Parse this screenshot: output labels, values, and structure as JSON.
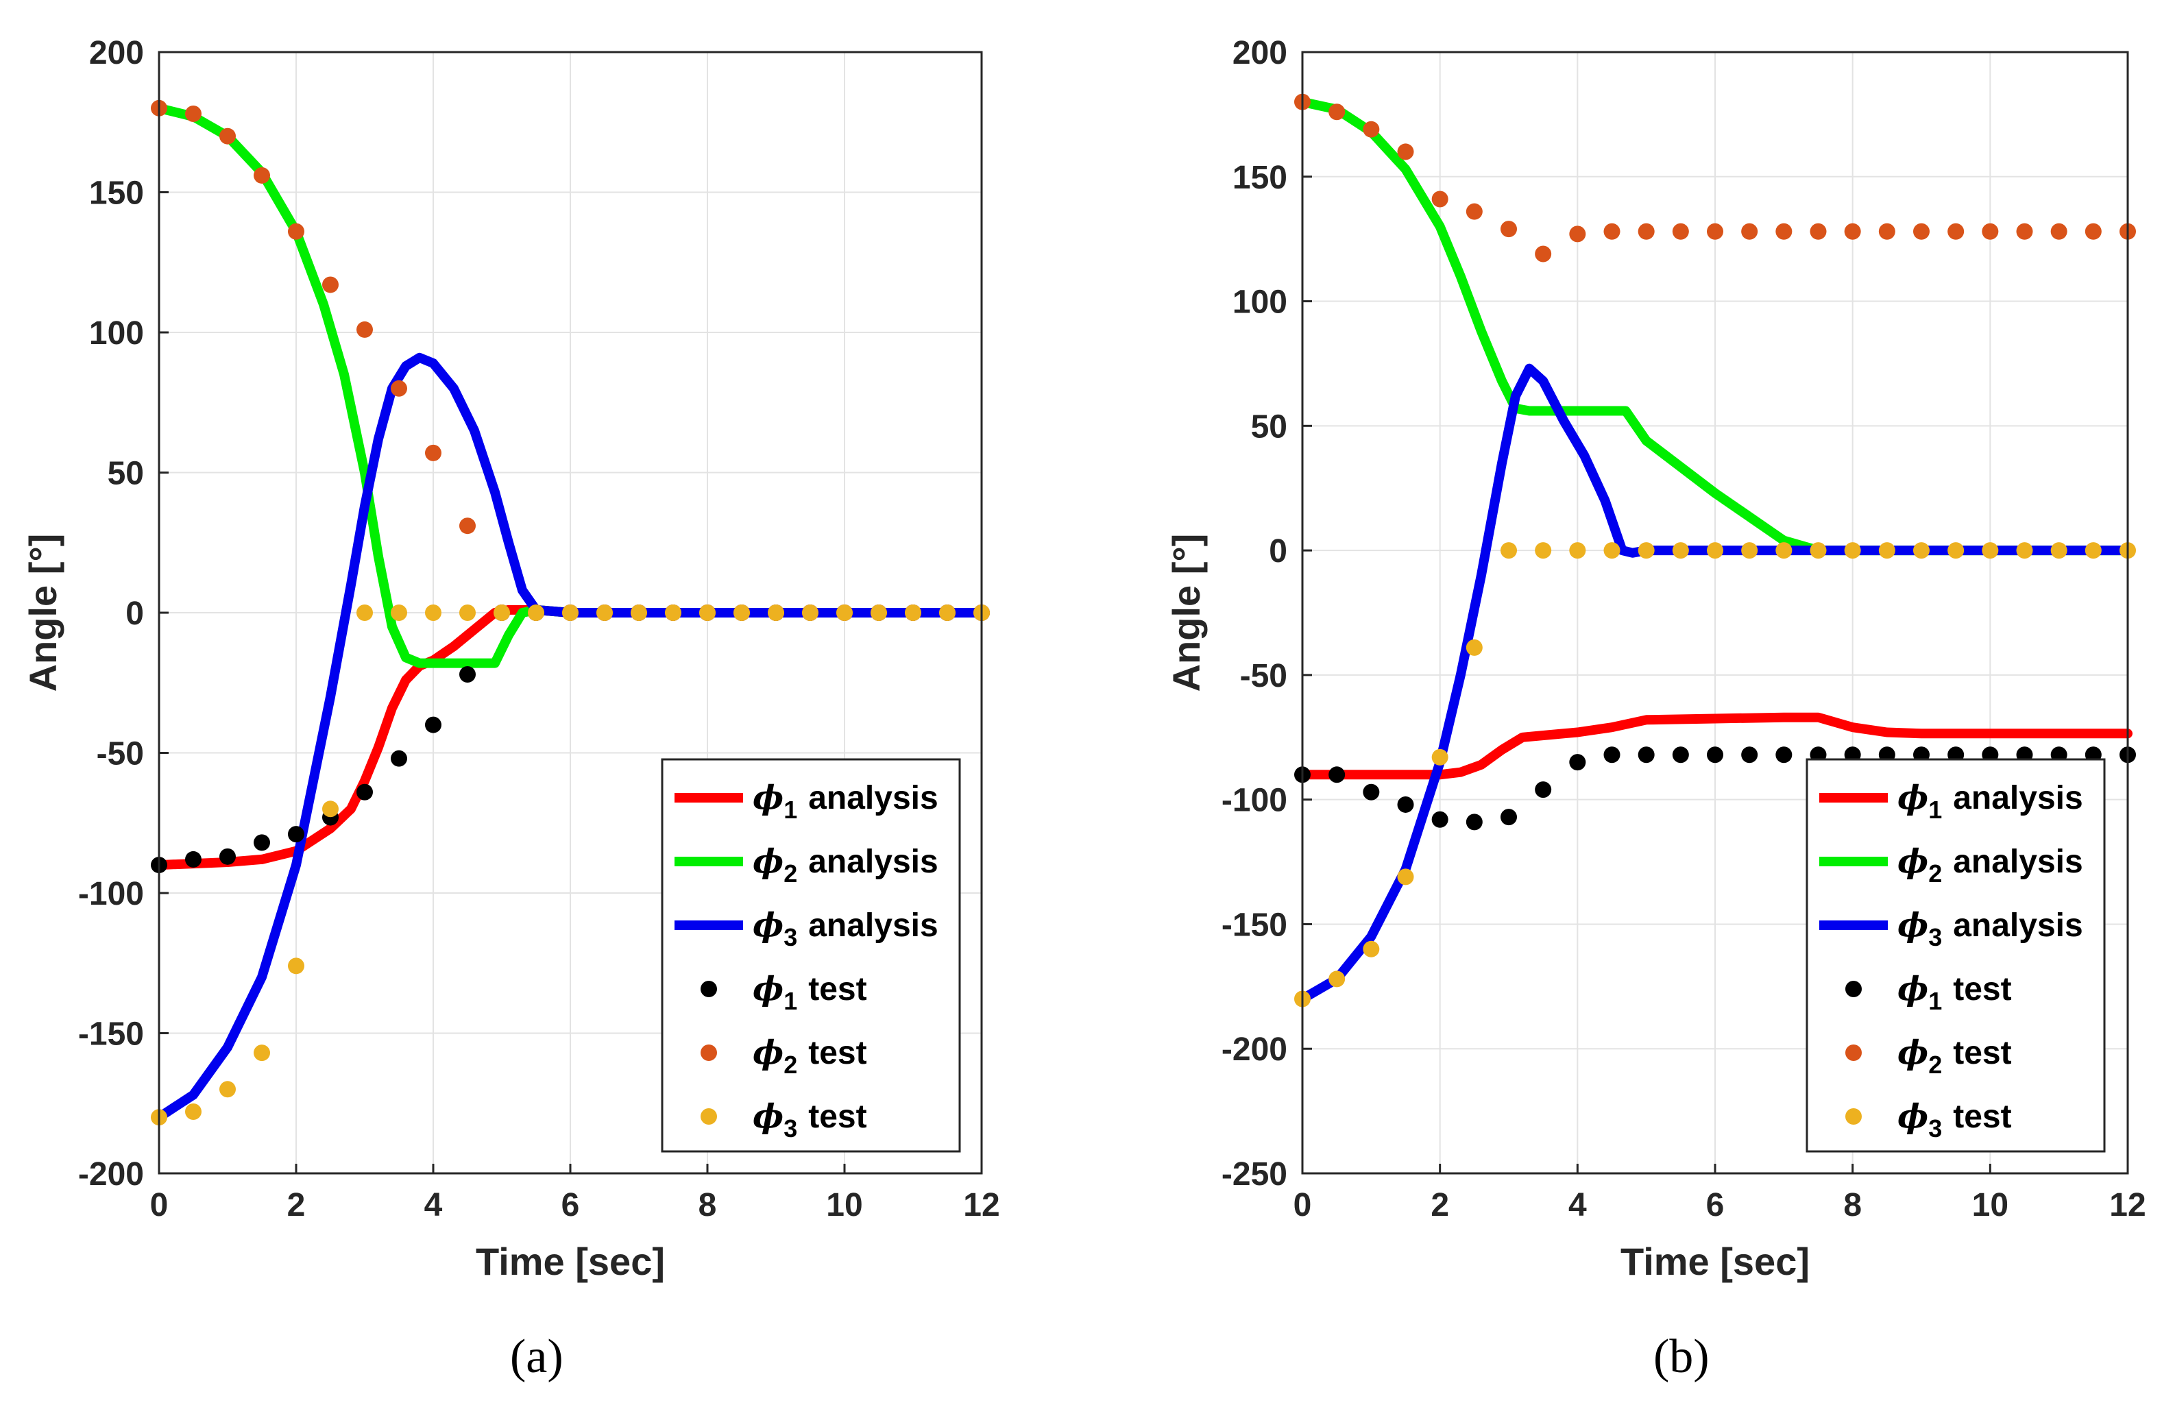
{
  "chart_data": [
    {
      "type": "line",
      "caption": "(a)",
      "xlabel": "Time [sec]",
      "ylabel": "Angle [°]",
      "xlim": [
        0,
        12
      ],
      "ylim": [
        -200,
        200
      ],
      "xticks": [
        0,
        2,
        4,
        6,
        8,
        10,
        12
      ],
      "yticks": [
        -200,
        -150,
        -100,
        -50,
        0,
        50,
        100,
        150,
        200
      ],
      "grid": true,
      "legend_position": "bottom-right",
      "series": [
        {
          "sym": "ϕ",
          "sub": "1",
          "text": "analysis",
          "kind": "line",
          "color": "#ff0000",
          "x": [
            0,
            0.5,
            1,
            1.5,
            2,
            2.5,
            2.8,
            3.0,
            3.2,
            3.4,
            3.6,
            3.8,
            4.0,
            4.3,
            4.6,
            4.9,
            5.1,
            5.3,
            5.5,
            6,
            8,
            10,
            12
          ],
          "y": [
            -90,
            -89.5,
            -89,
            -88,
            -85,
            -77,
            -70,
            -60,
            -48,
            -34,
            -24,
            -19,
            -17,
            -12,
            -6,
            0,
            1,
            1,
            1,
            0,
            0,
            0,
            0
          ]
        },
        {
          "sym": "ϕ",
          "sub": "2",
          "text": "analysis",
          "kind": "line",
          "color": "#00ee00",
          "x": [
            0,
            0.5,
            1,
            1.5,
            2,
            2.4,
            2.7,
            3.0,
            3.2,
            3.4,
            3.6,
            3.8,
            4.0,
            4.5,
            4.9,
            5.1,
            5.3,
            5.5,
            6,
            8,
            10,
            12
          ],
          "y": [
            180,
            177,
            170,
            157,
            136,
            110,
            85,
            50,
            20,
            -5,
            -16,
            -18,
            -18,
            -18,
            -18,
            -8,
            0,
            1,
            0,
            0,
            0,
            0
          ]
        },
        {
          "sym": "ϕ",
          "sub": "3",
          "text": "analysis",
          "kind": "line",
          "color": "#0000ee",
          "x": [
            0,
            0.5,
            1,
            1.5,
            2,
            2.5,
            2.8,
            3.0,
            3.2,
            3.4,
            3.6,
            3.8,
            4.0,
            4.3,
            4.6,
            4.9,
            5.1,
            5.3,
            5.5,
            6,
            8,
            10,
            12
          ],
          "y": [
            -180,
            -172,
            -155,
            -130,
            -90,
            -30,
            10,
            38,
            62,
            80,
            88,
            91,
            89,
            80,
            65,
            43,
            25,
            8,
            1,
            0,
            0,
            0,
            0
          ]
        },
        {
          "sym": "ϕ",
          "sub": "1",
          "text": "test",
          "kind": "points",
          "color": "#000000",
          "x": [
            0,
            0.5,
            1,
            1.5,
            2,
            2.5,
            3,
            3.5,
            4,
            4.5,
            5,
            5.5,
            6,
            6.5,
            7,
            7.5,
            8,
            8.5,
            9,
            9.5,
            10,
            10.5,
            11,
            11.5,
            12
          ],
          "y": [
            -90,
            -88,
            -87,
            -82,
            -79,
            -73,
            -64,
            -52,
            -40,
            -22,
            0,
            0,
            0,
            0,
            0,
            0,
            0,
            0,
            0,
            0,
            0,
            0,
            0,
            0,
            0
          ]
        },
        {
          "sym": "ϕ",
          "sub": "2",
          "text": "test",
          "kind": "points",
          "color": "#d95319",
          "x": [
            0,
            0.5,
            1,
            1.5,
            2,
            2.5,
            3,
            3.5,
            4,
            4.5,
            5,
            5.5,
            6,
            6.5,
            7,
            7.5,
            8,
            8.5,
            9,
            9.5,
            10,
            10.5,
            11,
            11.5,
            12
          ],
          "y": [
            180,
            178,
            170,
            156,
            136,
            117,
            101,
            80,
            57,
            31,
            0,
            0,
            0,
            0,
            0,
            0,
            0,
            0,
            0,
            0,
            0,
            0,
            0,
            0,
            0
          ]
        },
        {
          "sym": "ϕ",
          "sub": "3",
          "text": "test",
          "kind": "points",
          "color": "#edb120",
          "x": [
            0,
            0.5,
            1,
            1.5,
            2,
            2.5,
            3,
            3.5,
            4,
            4.5,
            5,
            5.5,
            6,
            6.5,
            7,
            7.5,
            8,
            8.5,
            9,
            9.5,
            10,
            10.5,
            11,
            11.5,
            12
          ],
          "y": [
            -180,
            -178,
            -170,
            -157,
            -126,
            -70,
            0,
            0,
            0,
            0,
            0,
            0,
            0,
            0,
            0,
            0,
            0,
            0,
            0,
            0,
            0,
            0,
            0,
            0,
            0
          ]
        }
      ]
    },
    {
      "type": "line",
      "caption": "(b)",
      "xlabel": "Time [sec]",
      "ylabel": "Angle [°]",
      "xlim": [
        0,
        12
      ],
      "ylim": [
        -250,
        200
      ],
      "xticks": [
        0,
        2,
        4,
        6,
        8,
        10,
        12
      ],
      "yticks": [
        -250,
        -200,
        -150,
        -100,
        -50,
        0,
        50,
        100,
        150,
        200
      ],
      "grid": true,
      "legend_position": "bottom-right",
      "series": [
        {
          "sym": "ϕ",
          "sub": "1",
          "text": "analysis",
          "kind": "line",
          "color": "#ff0000",
          "x": [
            0,
            0.5,
            1,
            1.5,
            2,
            2.3,
            2.6,
            2.9,
            3.2,
            3.6,
            4.0,
            4.5,
            5.0,
            6,
            7,
            7.5,
            8,
            8.5,
            9,
            10,
            11,
            12
          ],
          "y": [
            -90,
            -90,
            -90,
            -90,
            -90,
            -89,
            -86,
            -80,
            -75,
            -74,
            -73,
            -71,
            -68,
            -67.5,
            -67,
            -67,
            -71,
            -73,
            -73.5,
            -73.5,
            -73.5,
            -73.5
          ]
        },
        {
          "sym": "ϕ",
          "sub": "2",
          "text": "analysis",
          "kind": "line",
          "color": "#00ee00",
          "x": [
            0,
            0.5,
            1,
            1.5,
            2,
            2.3,
            2.6,
            2.9,
            3.1,
            3.3,
            4.0,
            4.7,
            5.0,
            6.0,
            7.0,
            7.5,
            8,
            10,
            12
          ],
          "y": [
            180,
            177,
            168,
            153,
            130,
            110,
            88,
            68,
            57,
            56,
            56,
            56,
            44,
            23,
            4,
            0,
            0,
            0,
            0
          ]
        },
        {
          "sym": "ϕ",
          "sub": "3",
          "text": "analysis",
          "kind": "line",
          "color": "#0000ee",
          "x": [
            0,
            0.5,
            1,
            1.5,
            2,
            2.3,
            2.6,
            2.9,
            3.1,
            3.3,
            3.5,
            3.8,
            4.1,
            4.4,
            4.65,
            4.8,
            5,
            6,
            8,
            10,
            12
          ],
          "y": [
            -180,
            -172,
            -155,
            -128,
            -85,
            -50,
            -10,
            35,
            62,
            73,
            68,
            52,
            38,
            20,
            0,
            -1,
            0,
            0,
            0,
            0,
            0
          ]
        },
        {
          "sym": "ϕ",
          "sub": "1",
          "text": "test",
          "kind": "points",
          "color": "#000000",
          "x": [
            0,
            0.5,
            1,
            1.5,
            2,
            2.5,
            3,
            3.5,
            4,
            4.5,
            5,
            5.5,
            6,
            6.5,
            7,
            7.5,
            8,
            8.5,
            9,
            9.5,
            10,
            10.5,
            11,
            11.5,
            12
          ],
          "y": [
            -90,
            -90,
            -97,
            -102,
            -108,
            -109,
            -107,
            -96,
            -85,
            -82,
            -82,
            -82,
            -82,
            -82,
            -82,
            -82,
            -82,
            -82,
            -82,
            -82,
            -82,
            -82,
            -82,
            -82,
            -82
          ]
        },
        {
          "sym": "ϕ",
          "sub": "2",
          "text": "test",
          "kind": "points",
          "color": "#d95319",
          "x": [
            0,
            0.5,
            1,
            1.5,
            2,
            2.5,
            3,
            3.5,
            4,
            4.5,
            5,
            5.5,
            6,
            6.5,
            7,
            7.5,
            8,
            8.5,
            9,
            9.5,
            10,
            10.5,
            11,
            11.5,
            12
          ],
          "y": [
            180,
            176,
            169,
            160,
            141,
            136,
            129,
            119,
            127,
            128,
            128,
            128,
            128,
            128,
            128,
            128,
            128,
            128,
            128,
            128,
            128,
            128,
            128,
            128,
            128
          ]
        },
        {
          "sym": "ϕ",
          "sub": "3",
          "text": "test",
          "kind": "points",
          "color": "#edb120",
          "x": [
            0,
            0.5,
            1,
            1.5,
            2,
            2.5,
            3,
            3.5,
            4,
            4.5,
            5,
            5.5,
            6,
            6.5,
            7,
            7.5,
            8,
            8.5,
            9,
            9.5,
            10,
            10.5,
            11,
            11.5,
            12
          ],
          "y": [
            -180,
            -172,
            -160,
            -131,
            -83,
            -39,
            0,
            0,
            0,
            0,
            0,
            0,
            0,
            0,
            0,
            0,
            0,
            0,
            0,
            0,
            0,
            0,
            0,
            0,
            0
          ]
        }
      ]
    }
  ]
}
